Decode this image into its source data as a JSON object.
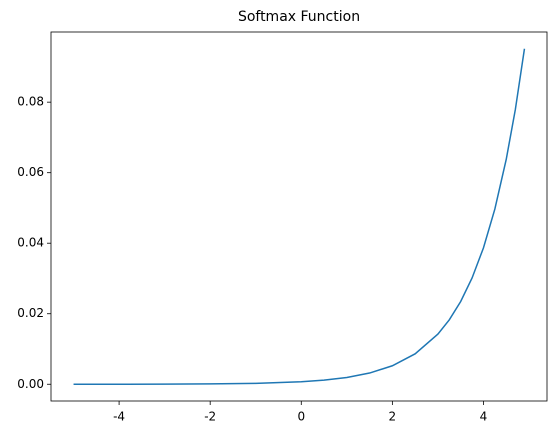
{
  "chart_data": {
    "type": "line",
    "title": "Softmax Function",
    "x": [
      -5,
      -4,
      -3,
      -2,
      -1,
      0,
      0.5,
      1,
      1.5,
      2,
      2.5,
      3,
      3.25,
      3.5,
      3.75,
      4,
      4.25,
      4.5,
      4.7,
      4.9
    ],
    "series": [
      {
        "color": "#1f77b4",
        "values": [
          4.8e-06,
          1.3e-05,
          3.5e-05,
          9.6e-05,
          0.00026,
          0.00071,
          0.00117,
          0.00193,
          0.00318,
          0.00524,
          0.00863,
          0.01423,
          0.01828,
          0.02347,
          0.03013,
          0.03869,
          0.04968,
          0.06379,
          0.07791,
          0.09516
        ]
      }
    ],
    "xlim": [
      -5.495,
      5.395
    ],
    "ylim": [
      -0.00475,
      0.0999
    ],
    "xticks": [
      -4,
      -2,
      0,
      2,
      4
    ],
    "yticks": [
      {
        "value": 0,
        "label": "0.00"
      },
      {
        "value": 0.02,
        "label": "0.02"
      },
      {
        "value": 0.04,
        "label": "0.04"
      },
      {
        "value": 0.06,
        "label": "0.06"
      },
      {
        "value": 0.08,
        "label": "0.08"
      }
    ],
    "grid": false
  }
}
